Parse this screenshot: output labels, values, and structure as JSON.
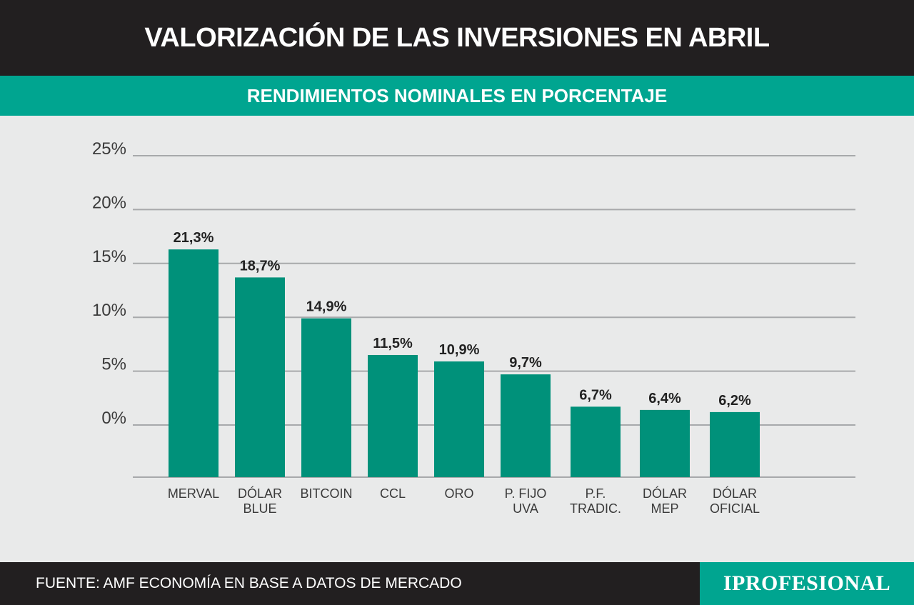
{
  "header": {
    "title": "VALORIZACIÓN DE LAS INVERSIONES EN ABRIL",
    "subtitle": "RENDIMIENTOS NOMINALES EN PORCENTAJE"
  },
  "footer": {
    "source": "FUENTE: AMF ECONOMÍA EN BASE A DATOS DE MERCADO",
    "logo": "IPROFESIONAL"
  },
  "colors": {
    "bar": "#00917a",
    "accent": "#00a590",
    "dark": "#221f20",
    "gridline": "#a7a9ab"
  },
  "chart_data": {
    "type": "bar",
    "categories": [
      [
        "MERVAL"
      ],
      [
        "DÓLAR",
        "BLUE"
      ],
      [
        "BITCOIN"
      ],
      [
        "CCL"
      ],
      [
        "ORO"
      ],
      [
        "P. FIJO",
        "UVA"
      ],
      [
        "P.F.",
        "TRADIC."
      ],
      [
        "DÓLAR",
        "MEP"
      ],
      [
        "DÓLAR",
        "OFICIAL"
      ]
    ],
    "values": [
      21.3,
      18.7,
      14.9,
      11.5,
      10.9,
      9.7,
      6.7,
      6.4,
      6.2
    ],
    "value_labels": [
      "21,3%",
      "18,7%",
      "14,9%",
      "11,5%",
      "10,9%",
      "9,7%",
      "6,7%",
      "6,4%",
      "6,2%"
    ],
    "y_ticks": [
      0,
      5,
      10,
      15,
      20,
      25
    ],
    "y_tick_labels": [
      "0%",
      "5%",
      "10%",
      "15%",
      "20%",
      "25%"
    ],
    "ylim": [
      -5,
      25
    ],
    "grid": true,
    "legend": "none"
  }
}
